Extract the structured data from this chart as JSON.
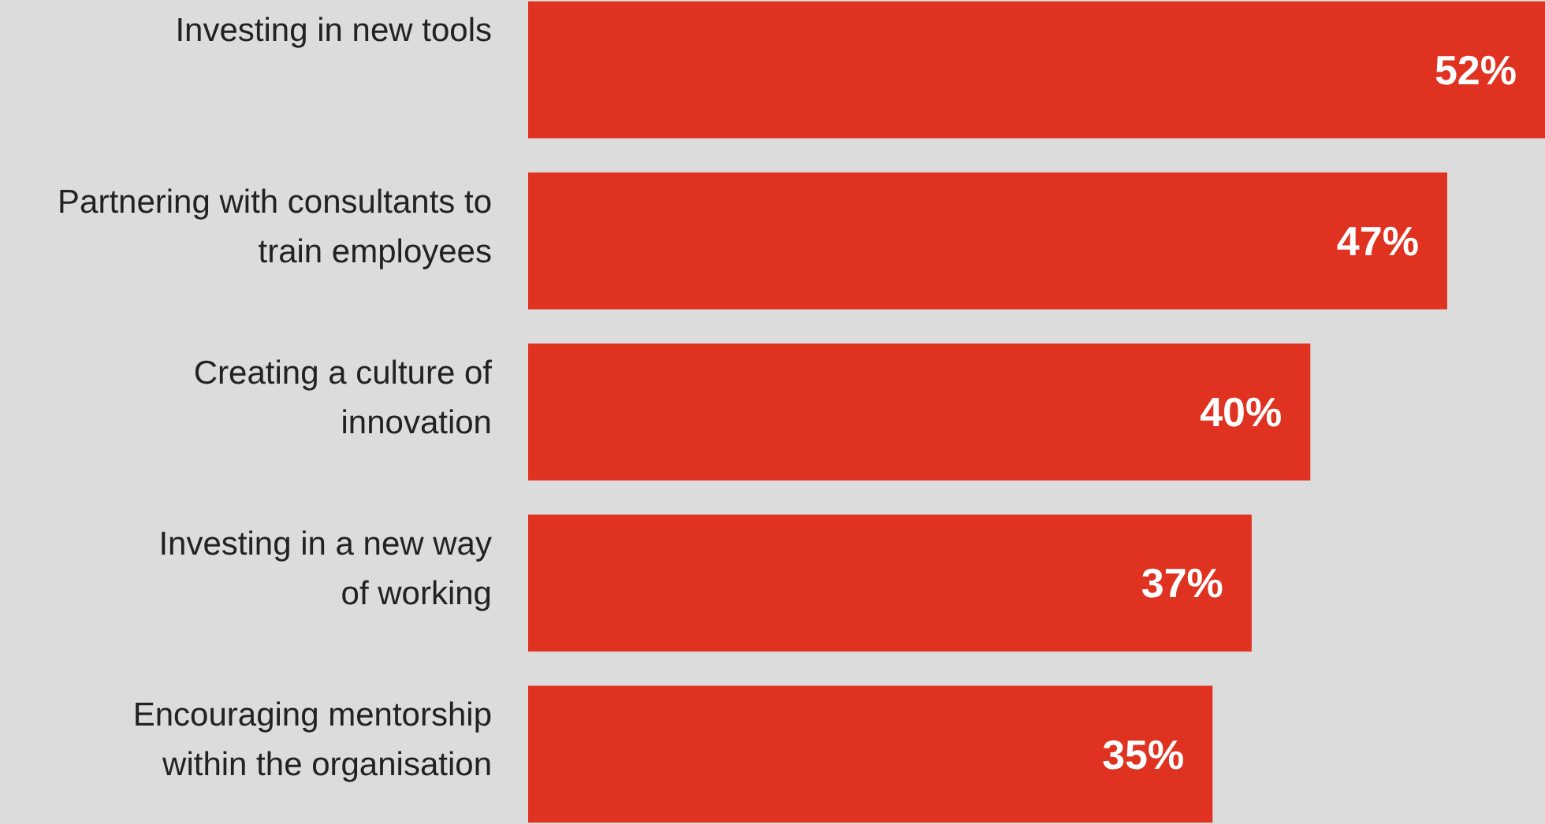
{
  "chart_data": {
    "type": "bar",
    "orientation": "horizontal",
    "categories": [
      "Investing in new tools",
      "Partnering with consultants to\ntrain employees",
      "Creating a culture of\ninnovation",
      "Investing in a new way\nof working",
      "Encouraging mentorship\nwithin the organisation"
    ],
    "values": [
      52,
      47,
      40,
      37,
      35
    ],
    "color": "#e03220",
    "data_labels": true,
    "value_labels": [
      "52%",
      "47%",
      "40%",
      "37%",
      "35%"
    ]
  }
}
